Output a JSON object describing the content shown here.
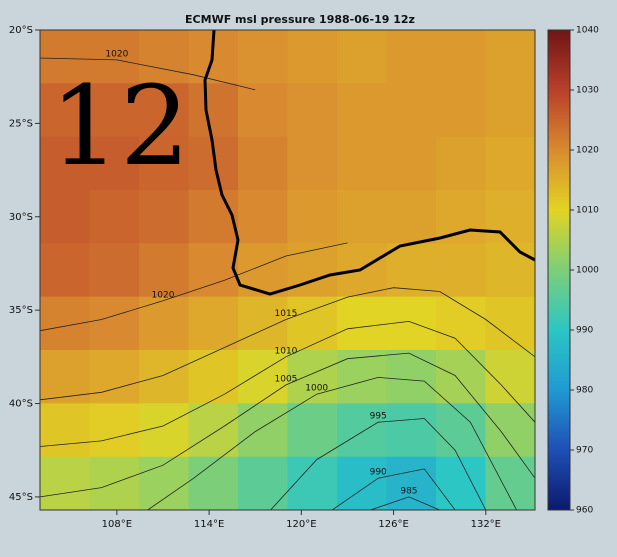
{
  "chart_data": {
    "type": "contour-map",
    "title": "ECMWF msl pressure 1988-06-19 12z",
    "annotation": "12",
    "xlim": [
      103,
      135.2
    ],
    "ylim": [
      -45.7,
      -20
    ],
    "xticks": [
      {
        "value": 108,
        "label": "108°E"
      },
      {
        "value": 114,
        "label": "114°E"
      },
      {
        "value": 120,
        "label": "120°E"
      },
      {
        "value": 126,
        "label": "126°E"
      },
      {
        "value": 132,
        "label": "132°E"
      }
    ],
    "yticks": [
      {
        "value": -20,
        "label": "20°S"
      },
      {
        "value": -25,
        "label": "25°S"
      },
      {
        "value": -30,
        "label": "30°S"
      },
      {
        "value": -35,
        "label": "35°S"
      },
      {
        "value": -40,
        "label": "40°S"
      },
      {
        "value": -45,
        "label": "45°S"
      }
    ],
    "clim": [
      960,
      1040
    ],
    "cticks": [
      960,
      970,
      980,
      990,
      1000,
      1010,
      1020,
      1030,
      1040
    ],
    "colormap": [
      "#0b1a6e",
      "#1f4fb4",
      "#1f9ad2",
      "#2cc6c4",
      "#7ccf78",
      "#e2d424",
      "#d98a30",
      "#b8402a",
      "#701515"
    ],
    "z": [
      [
        1022,
        1022,
        1021,
        1020,
        1019,
        1018,
        1017,
        1018,
        1018,
        1017
      ],
      [
        1025,
        1025,
        1025,
        1023,
        1020,
        1019,
        1018,
        1018,
        1018,
        1017
      ],
      [
        1026,
        1026,
        1025,
        1024,
        1021,
        1019,
        1018,
        1018,
        1017,
        1016
      ],
      [
        1026,
        1025,
        1024,
        1022,
        1020,
        1018,
        1017,
        1017,
        1016,
        1015
      ],
      [
        1025,
        1024,
        1022,
        1020,
        1018,
        1017,
        1016,
        1015,
        1015,
        1014
      ],
      [
        1021,
        1020,
        1018,
        1016,
        1014,
        1012,
        1010,
        1010,
        1011,
        1012
      ],
      [
        1017,
        1016,
        1014,
        1012,
        1009,
        1005,
        1003,
        1002,
        1004,
        1008
      ],
      [
        1012,
        1011,
        1009,
        1006,
        1002,
        998,
        995,
        994,
        996,
        1002
      ],
      [
        1006,
        1005,
        1003,
        1000,
        996,
        992,
        988,
        986,
        990,
        997
      ]
    ],
    "contours": [
      {
        "level": 1020,
        "points": [
          [
            103,
            -21.5
          ],
          [
            108,
            -21.6
          ],
          [
            113,
            -22.4
          ],
          [
            117,
            -23.2
          ]
        ]
      },
      {
        "level": 1020,
        "points": [
          [
            103,
            -36.1
          ],
          [
            107,
            -35.5
          ],
          [
            111,
            -34.5
          ],
          [
            115,
            -33.4
          ],
          [
            119,
            -32.1
          ],
          [
            123,
            -31.4
          ]
        ]
      },
      {
        "level": 1015,
        "points": [
          [
            103,
            -39.8
          ],
          [
            107,
            -39.4
          ],
          [
            111,
            -38.5
          ],
          [
            115,
            -37
          ],
          [
            119,
            -35.5
          ],
          [
            123,
            -34.3
          ],
          [
            126,
            -33.8
          ],
          [
            129,
            -34
          ],
          [
            132,
            -35.5
          ],
          [
            135.2,
            -37.5
          ]
        ]
      },
      {
        "level": 1010,
        "points": [
          [
            103,
            -42.3
          ],
          [
            107,
            -42
          ],
          [
            111,
            -41.2
          ],
          [
            115,
            -39.5
          ],
          [
            119,
            -37.5
          ],
          [
            123,
            -36
          ],
          [
            127,
            -35.6
          ],
          [
            130,
            -36.5
          ],
          [
            133,
            -39
          ],
          [
            135.2,
            -41
          ]
        ]
      },
      {
        "level": 1005,
        "points": [
          [
            103,
            -45
          ],
          [
            107,
            -44.5
          ],
          [
            111,
            -43.3
          ],
          [
            115,
            -41.2
          ],
          [
            119,
            -39
          ],
          [
            123,
            -37.6
          ],
          [
            127,
            -37.3
          ],
          [
            130,
            -38.5
          ],
          [
            133,
            -41.5
          ],
          [
            135.2,
            -44
          ]
        ]
      },
      {
        "level": 1000,
        "points": [
          [
            110,
            -45.7
          ],
          [
            113,
            -44
          ],
          [
            117,
            -41.5
          ],
          [
            121,
            -39.5
          ],
          [
            125,
            -38.6
          ],
          [
            128,
            -38.8
          ],
          [
            131,
            -41
          ],
          [
            134,
            -45.7
          ]
        ]
      },
      {
        "level": 995,
        "points": [
          [
            118,
            -45.7
          ],
          [
            121,
            -43
          ],
          [
            125,
            -41
          ],
          [
            128,
            -40.8
          ],
          [
            130,
            -42.5
          ],
          [
            132,
            -45.7
          ]
        ]
      },
      {
        "level": 990,
        "points": [
          [
            122,
            -45.7
          ],
          [
            125,
            -44
          ],
          [
            128,
            -43.5
          ],
          [
            130,
            -45.7
          ]
        ]
      },
      {
        "level": 985,
        "points": [
          [
            124.5,
            -45.7
          ],
          [
            127,
            -45
          ],
          [
            129,
            -45.7
          ]
        ]
      }
    ]
  }
}
